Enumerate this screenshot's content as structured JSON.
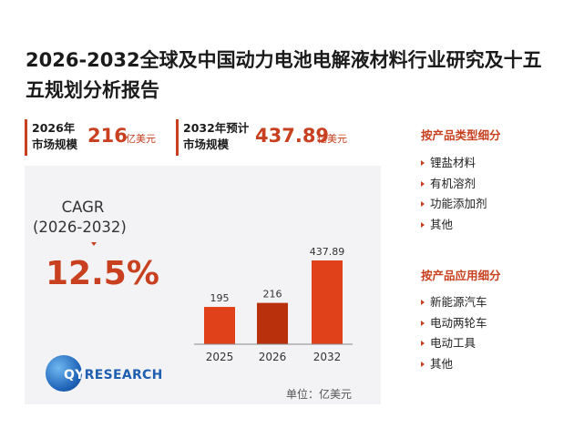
{
  "title": "2026-2032全球及中国动力电池电解液材料行业研究及十五五规划分析报告",
  "kpis": [
    {
      "label_line1": "2026年",
      "label_line2": "市场规模",
      "value": "216",
      "unit": "亿美元"
    },
    {
      "label_line1": "2032年预计",
      "label_line2": "市场规模",
      "value": "437.89",
      "unit": "亿美元"
    }
  ],
  "cagr": {
    "label": "CAGR",
    "period": "(2026-2032)",
    "value": "12.5%"
  },
  "unit_label": "单位：亿美元",
  "logo": {
    "text_q": "QY",
    "text_rest": "RESEARCH"
  },
  "colors": {
    "accent": "#c8401f",
    "bar_main": "#e0401a",
    "bar_highlight": "#b8300c"
  },
  "chart_data": {
    "type": "bar",
    "categories": [
      "2025",
      "2026",
      "2032"
    ],
    "values": [
      195,
      216,
      437.89
    ],
    "data_labels": [
      "195",
      "216",
      "437.89"
    ],
    "highlight_category": "2026",
    "ylim": [
      0,
      450
    ],
    "grid": false,
    "legend": "none"
  },
  "sidebar": {
    "product_type_heading": "按产品类型细分",
    "product_types": [
      "锂盐材料",
      "有机溶剂",
      "功能添加剂",
      "其他"
    ],
    "application_heading": "按产品应用细分",
    "applications": [
      "新能源汽车",
      "电动两轮车",
      "电动工具",
      "其他"
    ]
  }
}
